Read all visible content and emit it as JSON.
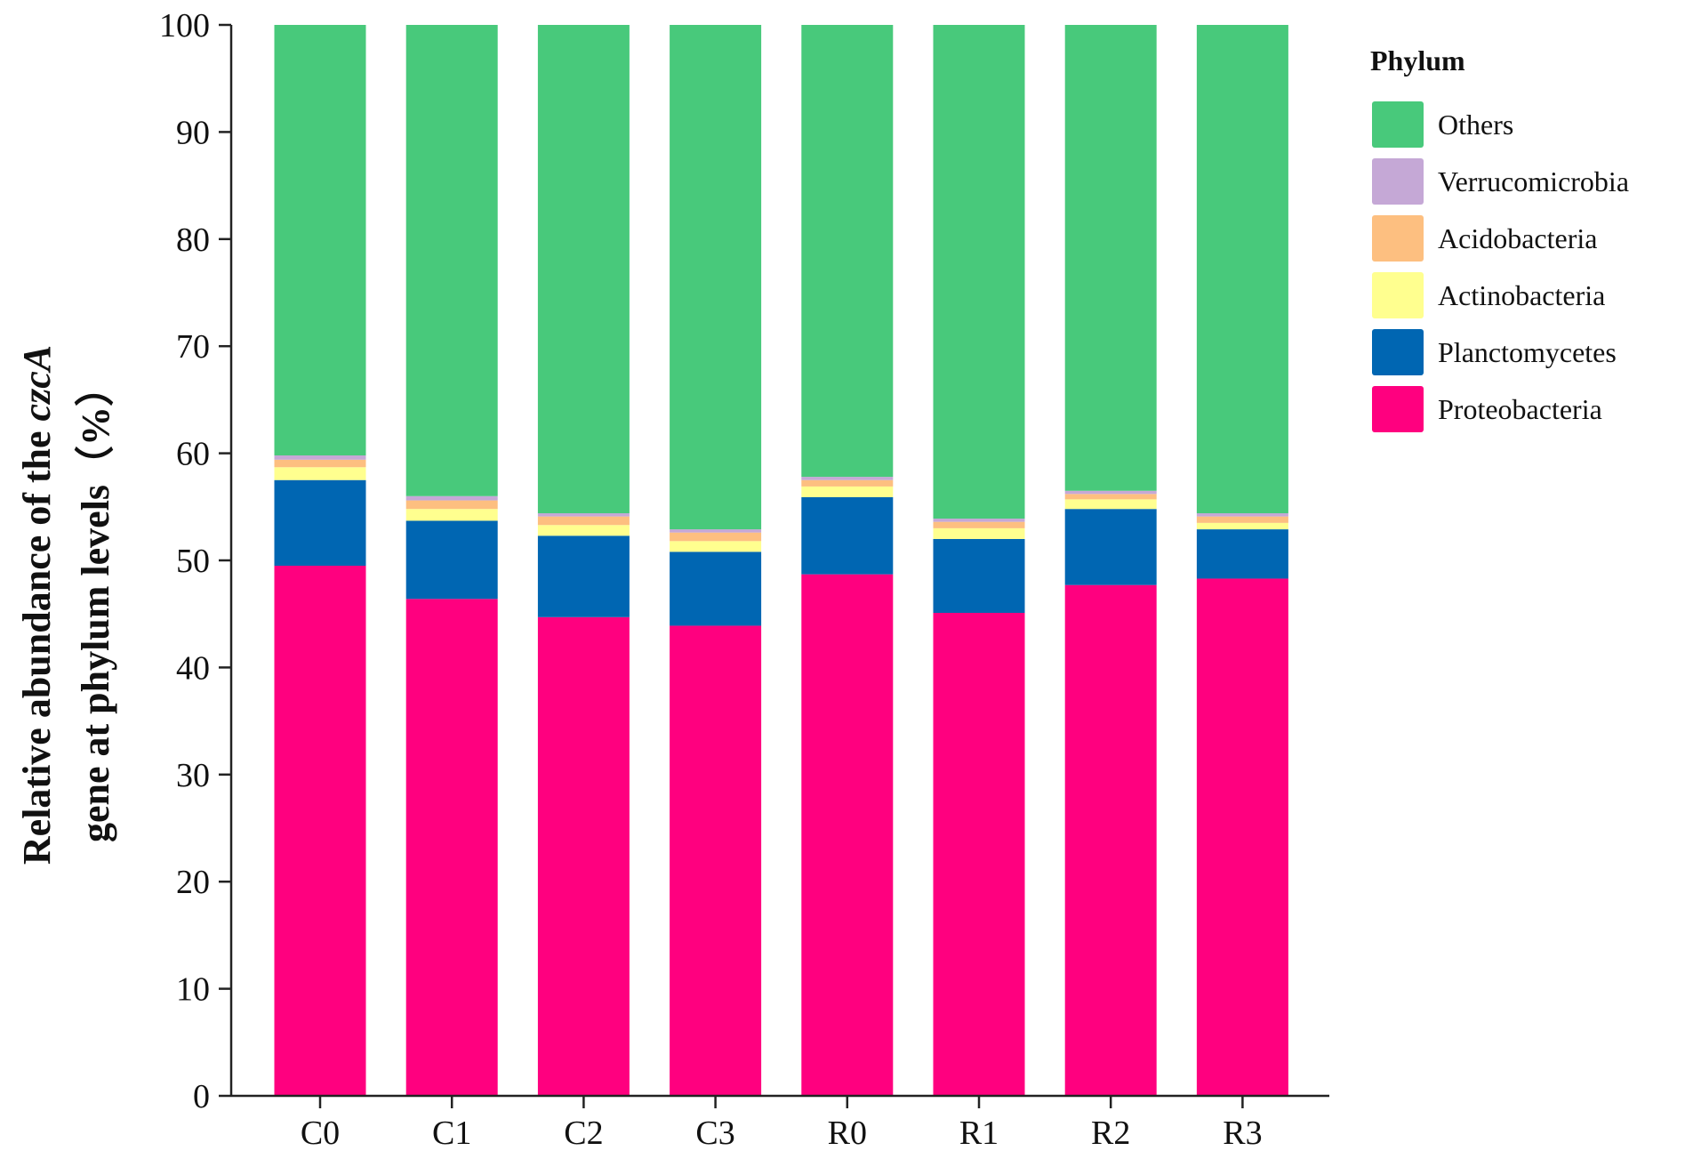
{
  "chart_data": {
    "type": "bar",
    "stacked": true,
    "title": "",
    "xlabel": "",
    "ylabel_line1_prefix": "Relative abundance of the ",
    "ylabel_line1_italic": "czcA",
    "ylabel_line2": "gene at phylum levels（%）",
    "ylim": [
      0,
      100
    ],
    "yticks": [
      0,
      10,
      20,
      30,
      40,
      50,
      60,
      70,
      80,
      90,
      100
    ],
    "categories": [
      "C0",
      "C1",
      "C2",
      "C3",
      "R0",
      "R1",
      "R2",
      "R3"
    ],
    "series": [
      {
        "name": "Proteobacteria",
        "color": "#FF007F",
        "values": [
          49.5,
          46.4,
          44.7,
          43.9,
          48.7,
          45.1,
          47.7,
          48.3
        ]
      },
      {
        "name": "Planctomycetes",
        "color": "#0066B2",
        "values": [
          8.0,
          7.3,
          7.6,
          6.9,
          7.2,
          6.9,
          7.1,
          4.6
        ]
      },
      {
        "name": "Actinobacteria",
        "color": "#FFFF8F",
        "values": [
          1.2,
          1.1,
          1.0,
          1.0,
          1.0,
          1.0,
          0.9,
          0.6
        ]
      },
      {
        "name": "Acidobacteria",
        "color": "#FDBF80",
        "values": [
          0.7,
          0.8,
          0.8,
          0.8,
          0.6,
          0.6,
          0.5,
          0.6
        ]
      },
      {
        "name": "Verrucomicrobia",
        "color": "#C5A8D6",
        "values": [
          0.4,
          0.4,
          0.3,
          0.3,
          0.3,
          0.3,
          0.3,
          0.3
        ]
      },
      {
        "name": "Others",
        "color": "#48C97B",
        "values": [
          40.2,
          44.0,
          45.6,
          47.1,
          42.2,
          46.1,
          43.5,
          45.6
        ]
      }
    ],
    "legend": {
      "title": "Phylum",
      "placement": "right",
      "order": [
        "Others",
        "Verrucomicrobia",
        "Acidobacteria",
        "Actinobacteria",
        "Planctomycetes",
        "Proteobacteria"
      ]
    }
  }
}
